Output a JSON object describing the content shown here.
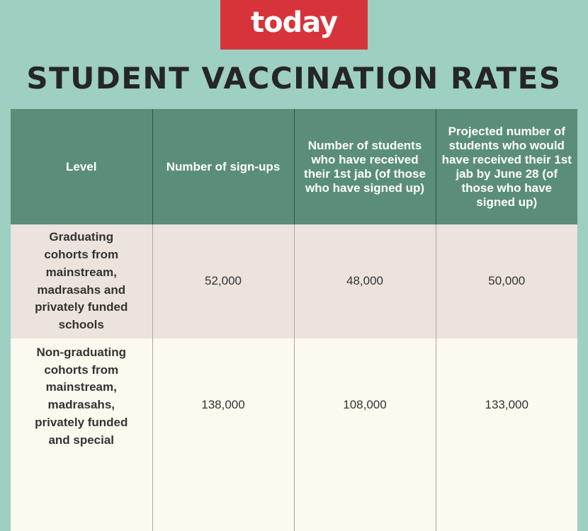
{
  "logo": {
    "text": "today",
    "color": "#d6343a"
  },
  "title": "STUDENT VACCINATION RATES",
  "table": {
    "headers": [
      "Level",
      "Number of sign-ups",
      "Number of students who have received their 1st jab (of those who have signed up)",
      "Projected number of students who would have received their 1st jab by June 28 (of those who have signed up)"
    ],
    "rows": [
      {
        "level": "Graduating cohorts from mainstream, madrasahs and privately funded schools",
        "signups": "52,000",
        "first_jab": "48,000",
        "projected": "50,000"
      },
      {
        "level": "Non-graduating cohorts from mainstream, madrasahs, privately funded and special",
        "signups": "138,000",
        "first_jab": "108,000",
        "projected": "133,000"
      }
    ]
  },
  "colors": {
    "background": "#9dcfc2",
    "header_bg": "#5b8e78",
    "row1_bg": "#ebe3dc",
    "row2_bg": "#fcf9ee"
  }
}
